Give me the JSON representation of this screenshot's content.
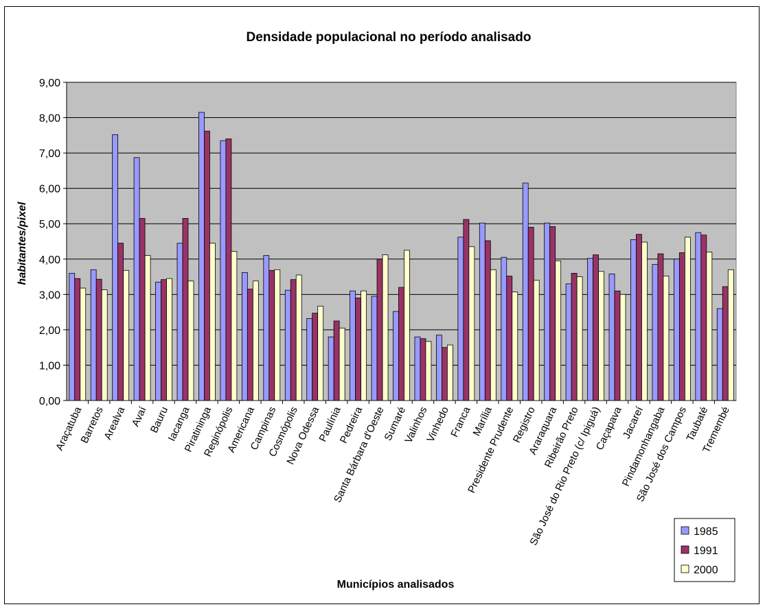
{
  "chart_data": {
    "type": "bar",
    "title": "Densidade populacional no período analisado",
    "xlabel": "Municípios analisados",
    "ylabel": "habitantes/pixel",
    "ylim": [
      0,
      9
    ],
    "yticks": [
      "0,00",
      "1,00",
      "2,00",
      "3,00",
      "4,00",
      "5,00",
      "6,00",
      "7,00",
      "8,00",
      "9,00"
    ],
    "grid": true,
    "legend_position": "bottom-right",
    "plot_background": "#c0c0c0",
    "categories": [
      "Araçatuba",
      "Barretos",
      "Arealva",
      "Avaí",
      "Bauru",
      "Iacanga",
      "Piratininga",
      "Reginópolis",
      "Americana",
      "Campinas",
      "Cosmópolis",
      "Nova Odessa",
      "Paulínia",
      "Pedreira",
      "Santa Bárbara d'Oeste",
      "Sumaré",
      "Valinhos",
      "Vinhedo",
      "Franca",
      "Marília",
      "Presidente Prudente",
      "Registro",
      "Araraquara",
      "Ribeirão Preto",
      "São José do Rio Preto (c/ Ipiguá)",
      "Caçapava",
      "Jacareí",
      "Pindamonhangaba",
      "São José dos Campos",
      "Taubaté",
      "Tremembé"
    ],
    "series": [
      {
        "name": "1985",
        "color": "#9999ff",
        "values": [
          3.6,
          3.7,
          7.52,
          6.87,
          3.35,
          4.45,
          8.15,
          7.35,
          3.62,
          4.1,
          3.12,
          2.32,
          1.8,
          3.1,
          2.95,
          2.52,
          1.8,
          1.85,
          4.62,
          5.02,
          4.05,
          6.15,
          5.02,
          3.3,
          4.02,
          3.58,
          4.55,
          3.85,
          4.0,
          4.75,
          2.6
        ]
      },
      {
        "name": "1991",
        "color": "#993366",
        "values": [
          3.45,
          3.43,
          4.45,
          5.15,
          3.42,
          5.15,
          7.62,
          7.4,
          3.15,
          3.68,
          3.42,
          2.47,
          2.25,
          2.9,
          4.0,
          3.2,
          1.75,
          1.5,
          5.12,
          4.52,
          3.52,
          4.9,
          4.92,
          3.6,
          4.12,
          3.1,
          4.7,
          4.15,
          4.18,
          4.68,
          3.22
        ]
      },
      {
        "name": "2000",
        "color": "#ffffcc",
        "values": [
          3.18,
          3.13,
          3.68,
          4.1,
          3.45,
          3.38,
          4.45,
          4.22,
          3.38,
          3.7,
          3.55,
          2.67,
          2.05,
          3.1,
          4.12,
          4.25,
          1.67,
          1.57,
          4.35,
          3.7,
          3.07,
          3.4,
          3.95,
          3.5,
          3.65,
          3.0,
          4.48,
          3.52,
          4.62,
          4.2,
          3.7
        ]
      }
    ]
  }
}
